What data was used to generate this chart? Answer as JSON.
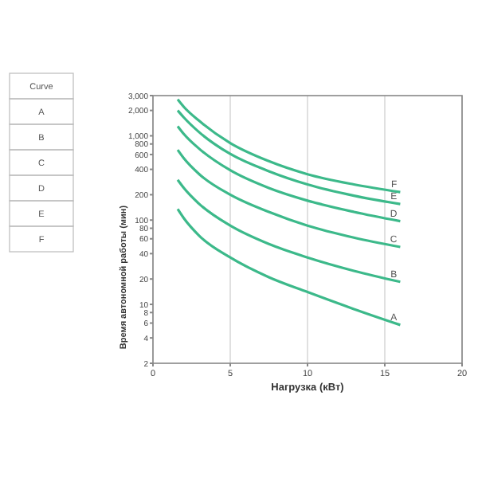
{
  "chart_data": {
    "type": "line",
    "xlabel": "Нагрузка (кВт)",
    "ylabel": "Время автономной работы (мин)",
    "x": [
      1.6,
      2,
      3,
      5,
      7.5,
      10,
      13,
      16
    ],
    "series": [
      {
        "name": "A",
        "color": "#3cb98a",
        "values": [
          135,
          105,
          65,
          36,
          21,
          14,
          8.8,
          5.7
        ]
      },
      {
        "name": "B",
        "color": "#3cb98a",
        "values": [
          300,
          240,
          155,
          86,
          52,
          36,
          25,
          18.5
        ]
      },
      {
        "name": "C",
        "color": "#3cb98a",
        "values": [
          680,
          540,
          350,
          200,
          125,
          86,
          62,
          48
        ]
      },
      {
        "name": "D",
        "color": "#3cb98a",
        "values": [
          1300,
          1050,
          700,
          390,
          240,
          170,
          125,
          97
        ]
      },
      {
        "name": "E",
        "color": "#3cb98a",
        "values": [
          2000,
          1650,
          1100,
          610,
          380,
          265,
          195,
          155
        ]
      },
      {
        "name": "F",
        "color": "#3cb98a",
        "values": [
          2700,
          2200,
          1500,
          820,
          500,
          350,
          265,
          215
        ]
      }
    ],
    "xlim": [
      0,
      20
    ],
    "xticks": [
      0,
      5,
      10,
      15,
      20
    ],
    "ylim": [
      2,
      3000
    ],
    "yticks": [
      2,
      4,
      6,
      8,
      10,
      20,
      40,
      60,
      80,
      100,
      200,
      400,
      600,
      800,
      {
        "value": 1000,
        "label": "1,000"
      },
      {
        "value": 2000,
        "label": "2,000"
      },
      {
        "value": 3000,
        "label": "3,000"
      }
    ],
    "log": "y",
    "grid": "x",
    "marker": "none",
    "line_style": "solid",
    "annotations": [
      "Curve",
      "A",
      "B",
      "C",
      "D",
      "E",
      "F"
    ]
  }
}
